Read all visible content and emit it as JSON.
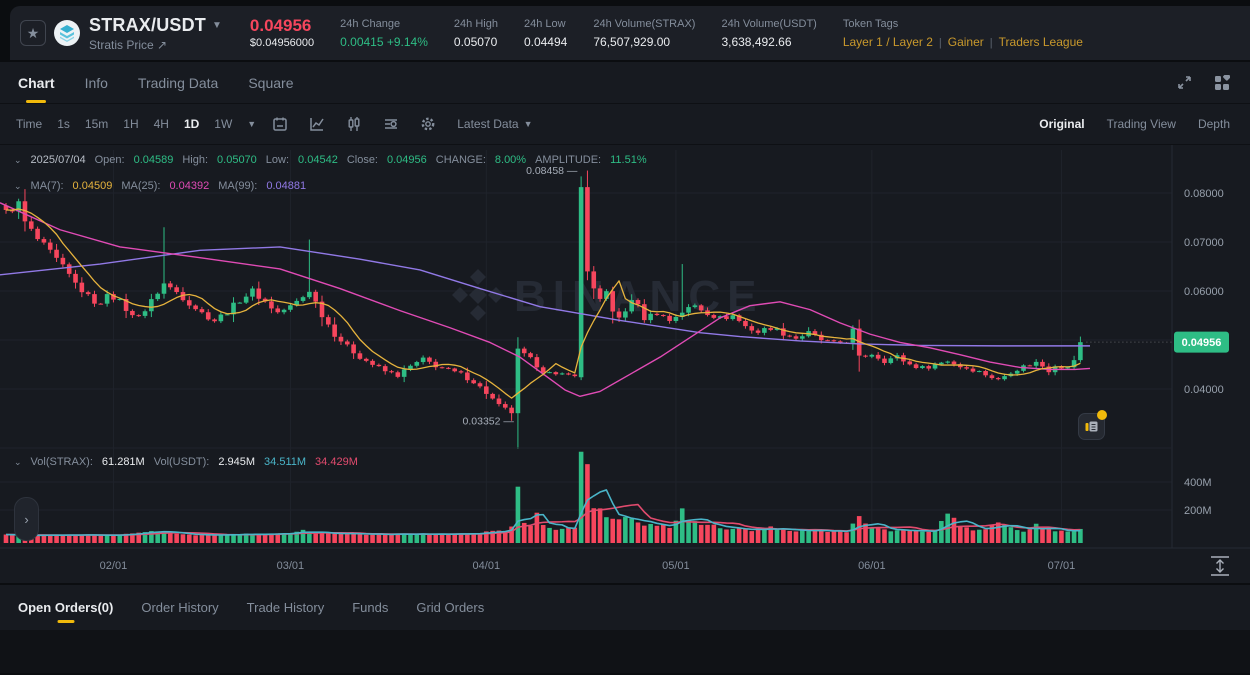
{
  "colors": {
    "green": "#2ebd85",
    "red": "#f6465d",
    "gold": "#f0b90b",
    "tag_gold": "#c9992c",
    "ma7": "#e6b33d",
    "ma25": "#e04bb5",
    "ma99": "#9179e6",
    "vol_fast": "#4ab5c9",
    "vol_slow": "#e24b6e",
    "axis_text": "#97a0ac",
    "grid": "#1f232b",
    "watermark": "#262b35",
    "badge_bg": "#2ebd85",
    "badge_text": "#ffffff"
  },
  "header": {
    "symbol": "STRAX/USDT",
    "subtitle": "Stratis Price",
    "price": "0.04956",
    "price_usd": "$0.04956000",
    "stats": [
      {
        "label": "24h Change",
        "value": "0.00415 +9.14%",
        "color": "green"
      },
      {
        "label": "24h High",
        "value": "0.05070"
      },
      {
        "label": "24h Low",
        "value": "0.04494"
      },
      {
        "label": "24h Volume(STRAX)",
        "value": "76,507,929.00"
      },
      {
        "label": "24h Volume(USDT)",
        "value": "3,638,492.66"
      }
    ],
    "token_tags": {
      "label": "Token Tags",
      "tags": [
        "Layer 1 / Layer 2",
        "Gainer",
        "Traders League"
      ]
    }
  },
  "tabs": {
    "items": [
      "Chart",
      "Info",
      "Trading Data",
      "Square"
    ],
    "active_index": 0
  },
  "toolbar": {
    "timeframes": [
      "Time",
      "1s",
      "15m",
      "1H",
      "4H",
      "1D",
      "1W"
    ],
    "active_timeframe": "1D",
    "latest_data": "Latest Data",
    "views": [
      "Original",
      "Trading View",
      "Depth"
    ],
    "active_view": "Original"
  },
  "chart": {
    "ohlc_row": {
      "date": "2025/07/04",
      "items": [
        {
          "label": "Open:",
          "value": "0.04589"
        },
        {
          "label": "High:",
          "value": "0.05070"
        },
        {
          "label": "Low:",
          "value": "0.04542"
        },
        {
          "label": "Close:",
          "value": "0.04956"
        },
        {
          "label": "CHANGE:",
          "value": "8.00%"
        },
        {
          "label": "AMPLITUDE:",
          "value": "11.51%"
        }
      ]
    },
    "ma_row": [
      {
        "label": "MA(7):",
        "value": "0.04509",
        "color": "#e6b33d"
      },
      {
        "label": "MA(25):",
        "value": "0.04392",
        "color": "#e04bb5"
      },
      {
        "label": "MA(99):",
        "value": "0.04881",
        "color": "#9179e6"
      }
    ],
    "vol_row": [
      {
        "label": "Vol(STRAX):",
        "value": "61.281M",
        "color": "#eaecef"
      },
      {
        "label": "Vol(USDT):",
        "value": "2.945M",
        "color": "#eaecef"
      },
      {
        "label": "",
        "value": "34.511M",
        "color": "#4ab5c9"
      },
      {
        "label": "",
        "value": "34.429M",
        "color": "#e24b6e"
      }
    ],
    "watermark": "BINANCE",
    "price_badge": "0.04956",
    "last_price": 0.04956,
    "y_ticks": [
      {
        "label": "0.08000",
        "price": 0.08
      },
      {
        "label": "0.07000",
        "price": 0.07
      },
      {
        "label": "0.06000",
        "price": 0.06
      },
      {
        "label": "0.04000",
        "price": 0.04
      }
    ],
    "grid_prices": [
      0.08,
      0.07,
      0.06,
      0.05,
      0.04
    ],
    "vol_ticks": [
      {
        "label": "400M",
        "v": 400
      },
      {
        "label": "200M",
        "v": 200
      }
    ],
    "x_ticks": [
      {
        "label": "02/01",
        "i": 17
      },
      {
        "label": "03/01",
        "i": 45
      },
      {
        "label": "04/01",
        "i": 76
      },
      {
        "label": "05/01",
        "i": 106
      },
      {
        "label": "06/01",
        "i": 137
      },
      {
        "label": "07/01",
        "i": 167
      }
    ],
    "high_marker": {
      "label": "0.08458",
      "i": 92,
      "price": 0.08458
    },
    "low_marker": {
      "label": "0.03352",
      "i": 81,
      "price": 0.03352
    },
    "series": {
      "count": 171,
      "close_waypoints": [
        [
          0,
          0.076
        ],
        [
          2,
          0.0778
        ],
        [
          3,
          0.074
        ],
        [
          5,
          0.0705
        ],
        [
          7,
          0.0678
        ],
        [
          9,
          0.0648
        ],
        [
          11,
          0.0615
        ],
        [
          13,
          0.0588
        ],
        [
          15,
          0.057
        ],
        [
          16,
          0.0598
        ],
        [
          18,
          0.0578
        ],
        [
          20,
          0.0548
        ],
        [
          22,
          0.056
        ],
        [
          24,
          0.0598
        ],
        [
          25,
          0.0615
        ],
        [
          27,
          0.0598
        ],
        [
          29,
          0.0576
        ],
        [
          31,
          0.0555
        ],
        [
          33,
          0.054
        ],
        [
          35,
          0.0558
        ],
        [
          37,
          0.0582
        ],
        [
          39,
          0.06
        ],
        [
          41,
          0.0578
        ],
        [
          43,
          0.0556
        ],
        [
          45,
          0.0568
        ],
        [
          47,
          0.0588
        ],
        [
          48,
          0.0602
        ],
        [
          50,
          0.0552
        ],
        [
          52,
          0.0512
        ],
        [
          54,
          0.0486
        ],
        [
          56,
          0.0466
        ],
        [
          58,
          0.045
        ],
        [
          60,
          0.0436
        ],
        [
          62,
          0.0428
        ],
        [
          64,
          0.0446
        ],
        [
          66,
          0.046
        ],
        [
          68,
          0.0448
        ],
        [
          70,
          0.0438
        ],
        [
          72,
          0.043
        ],
        [
          74,
          0.0415
        ],
        [
          76,
          0.0392
        ],
        [
          78,
          0.0366
        ],
        [
          80,
          0.0352
        ],
        [
          81,
          0.0478
        ],
        [
          83,
          0.046
        ],
        [
          85,
          0.0438
        ],
        [
          87,
          0.0426
        ],
        [
          89,
          0.0434
        ],
        [
          90,
          0.0424
        ],
        [
          91,
          0.0812
        ],
        [
          92,
          0.064
        ],
        [
          93,
          0.0602
        ],
        [
          94,
          0.0578
        ],
        [
          95,
          0.0598
        ],
        [
          96,
          0.0562
        ],
        [
          97,
          0.0542
        ],
        [
          98,
          0.0558
        ],
        [
          99,
          0.0585
        ],
        [
          100,
          0.0568
        ],
        [
          101,
          0.0545
        ],
        [
          103,
          0.0556
        ],
        [
          105,
          0.054
        ],
        [
          107,
          0.0558
        ],
        [
          109,
          0.057
        ],
        [
          111,
          0.0556
        ],
        [
          113,
          0.0544
        ],
        [
          115,
          0.055
        ],
        [
          117,
          0.0528
        ],
        [
          119,
          0.0516
        ],
        [
          121,
          0.0526
        ],
        [
          123,
          0.0514
        ],
        [
          125,
          0.0504
        ],
        [
          127,
          0.0514
        ],
        [
          129,
          0.05
        ],
        [
          131,
          0.0492
        ],
        [
          133,
          0.0498
        ],
        [
          134,
          0.052
        ],
        [
          135,
          0.0464
        ],
        [
          137,
          0.0472
        ],
        [
          139,
          0.0458
        ],
        [
          141,
          0.0466
        ],
        [
          143,
          0.045
        ],
        [
          145,
          0.0443
        ],
        [
          147,
          0.045
        ],
        [
          149,
          0.0458
        ],
        [
          151,
          0.0446
        ],
        [
          153,
          0.044
        ],
        [
          155,
          0.043
        ],
        [
          157,
          0.0418
        ],
        [
          159,
          0.0436
        ],
        [
          161,
          0.0446
        ],
        [
          163,
          0.0454
        ],
        [
          164,
          0.0447
        ],
        [
          165,
          0.0438
        ],
        [
          166,
          0.045
        ],
        [
          167,
          0.0446
        ],
        [
          168,
          0.0442
        ],
        [
          169,
          0.0459
        ],
        [
          170,
          0.0496
        ]
      ],
      "overrides": {
        "25": {
          "high": 0.073
        },
        "48": {
          "high": 0.0705
        },
        "80": {
          "low": 0.03352
        },
        "91": {
          "open": 0.0424,
          "close": 0.0812,
          "high": 0.0834,
          "low": 0.0418
        },
        "92": {
          "open": 0.0812,
          "close": 0.064,
          "high": 0.08458,
          "low": 0.0622
        },
        "107": {
          "high": 0.0655
        },
        "169": {
          "close": 0.04589
        },
        "170": {
          "open": 0.04589,
          "close": 0.04956,
          "high": 0.0507,
          "low": 0.04542
        }
      },
      "volume_waypoints": [
        [
          0,
          22
        ],
        [
          5,
          18
        ],
        [
          10,
          25
        ],
        [
          15,
          20
        ],
        [
          20,
          28
        ],
        [
          24,
          55
        ],
        [
          25,
          60
        ],
        [
          26,
          30
        ],
        [
          30,
          22
        ],
        [
          35,
          25
        ],
        [
          40,
          30
        ],
        [
          45,
          28
        ],
        [
          47,
          52
        ],
        [
          49,
          30
        ],
        [
          52,
          35
        ],
        [
          56,
          28
        ],
        [
          60,
          26
        ],
        [
          64,
          30
        ],
        [
          68,
          26
        ],
        [
          72,
          28
        ],
        [
          76,
          40
        ],
        [
          79,
          55
        ],
        [
          80,
          70
        ],
        [
          81,
          350
        ],
        [
          82,
          130
        ],
        [
          83,
          80
        ],
        [
          84,
          160
        ],
        [
          85,
          90
        ],
        [
          86,
          70
        ],
        [
          88,
          60
        ],
        [
          90,
          80
        ],
        [
          91,
          620
        ],
        [
          92,
          560
        ],
        [
          93,
          230
        ],
        [
          94,
          185
        ],
        [
          95,
          165
        ],
        [
          96,
          140
        ],
        [
          97,
          120
        ],
        [
          98,
          150
        ],
        [
          99,
          135
        ],
        [
          100,
          110
        ],
        [
          101,
          100
        ],
        [
          103,
          88
        ],
        [
          105,
          80
        ],
        [
          107,
          185
        ],
        [
          109,
          120
        ],
        [
          111,
          90
        ],
        [
          113,
          75
        ],
        [
          115,
          70
        ],
        [
          117,
          62
        ],
        [
          119,
          55
        ],
        [
          121,
          78
        ],
        [
          123,
          60
        ],
        [
          125,
          55
        ],
        [
          127,
          52
        ],
        [
          129,
          48
        ],
        [
          131,
          45
        ],
        [
          133,
          42
        ],
        [
          135,
          150
        ],
        [
          137,
          80
        ],
        [
          139,
          58
        ],
        [
          141,
          55
        ],
        [
          143,
          48
        ],
        [
          145,
          46
        ],
        [
          147,
          50
        ],
        [
          149,
          170
        ],
        [
          151,
          78
        ],
        [
          153,
          58
        ],
        [
          155,
          55
        ],
        [
          157,
          120
        ],
        [
          159,
          70
        ],
        [
          161,
          50
        ],
        [
          163,
          92
        ],
        [
          165,
          60
        ],
        [
          167,
          50
        ],
        [
          169,
          46
        ],
        [
          170,
          61
        ]
      ],
      "ma25_path": [
        [
          0,
          0.078
        ],
        [
          60,
          0.0725
        ],
        [
          120,
          0.069
        ],
        [
          200,
          0.0668
        ],
        [
          280,
          0.0645
        ],
        [
          340,
          0.0605
        ],
        [
          400,
          0.056
        ],
        [
          450,
          0.0525
        ],
        [
          490,
          0.0495
        ],
        [
          520,
          0.0465
        ],
        [
          545,
          0.0428
        ],
        [
          565,
          0.0398
        ],
        [
          580,
          0.0385
        ],
        [
          600,
          0.0395
        ],
        [
          630,
          0.043
        ],
        [
          660,
          0.0465
        ],
        [
          690,
          0.0505
        ],
        [
          720,
          0.0545
        ],
        [
          750,
          0.057
        ],
        [
          780,
          0.0578
        ],
        [
          810,
          0.0562
        ],
        [
          840,
          0.0535
        ],
        [
          870,
          0.0512
        ],
        [
          900,
          0.0495
        ],
        [
          930,
          0.0484
        ],
        [
          960,
          0.047
        ],
        [
          990,
          0.0455
        ],
        [
          1020,
          0.0444
        ],
        [
          1050,
          0.044
        ],
        [
          1075,
          0.044
        ],
        [
          1090,
          0.0442
        ]
      ],
      "ma99_path": [
        [
          0,
          0.0633
        ],
        [
          100,
          0.0655
        ],
        [
          200,
          0.0683
        ],
        [
          280,
          0.069
        ],
        [
          360,
          0.0665
        ],
        [
          420,
          0.0643
        ],
        [
          480,
          0.0605
        ],
        [
          540,
          0.0568
        ],
        [
          620,
          0.054
        ],
        [
          700,
          0.0515
        ],
        [
          740,
          0.0507
        ],
        [
          800,
          0.0498
        ],
        [
          860,
          0.0492
        ],
        [
          920,
          0.0489
        ],
        [
          1000,
          0.0488
        ],
        [
          1090,
          0.0488
        ]
      ]
    }
  },
  "bottom_tabs": {
    "items": [
      "Open Orders(0)",
      "Order History",
      "Trade History",
      "Funds",
      "Grid Orders"
    ],
    "active_index": 0
  }
}
